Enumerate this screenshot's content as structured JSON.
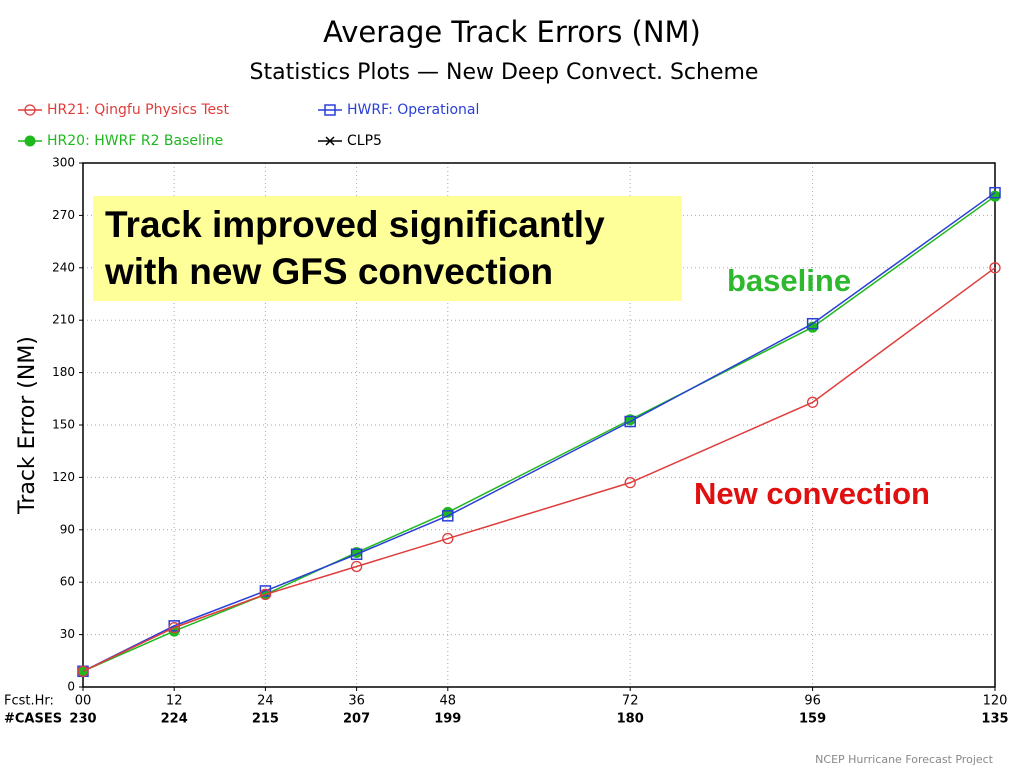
{
  "chart_data": {
    "type": "line",
    "title": "Average Track Errors (NM)",
    "subtitle": "Statistics Plots — New Deep Convect. Scheme",
    "y_label": "Track Error (NM)",
    "x_axis_label": "Fcst.Hr:",
    "cases_label": "#CASES",
    "x": [
      0,
      12,
      24,
      36,
      48,
      72,
      96,
      120
    ],
    "cases": [
      "230",
      "224",
      "215",
      "207",
      "199",
      "180",
      "159",
      "135"
    ],
    "xlim": [
      0,
      120
    ],
    "xticks": [
      {
        "value": 0,
        "label": "00"
      },
      12,
      24,
      36,
      48,
      72,
      96,
      120
    ],
    "ylim": [
      0,
      300
    ],
    "yticks": [
      0,
      30,
      60,
      90,
      120,
      150,
      180,
      210,
      240,
      270,
      300
    ],
    "grid": true,
    "series": [
      {
        "name": "HR21: Qingfu Physics Test",
        "color": "#e03c3c",
        "marker": "open-circle",
        "values": [
          9,
          34,
          53,
          69,
          85,
          117,
          163,
          240
        ]
      },
      {
        "name": "HWRF: Operational",
        "color": "#2a3fd6",
        "marker": "open-square",
        "values": [
          9,
          35,
          55,
          76,
          98,
          152,
          208,
          283
        ]
      },
      {
        "name": "HR20: HWRF R2 Baseline",
        "color": "#1fb81f",
        "marker": "filled-circle",
        "values": [
          9,
          32,
          53,
          77,
          100,
          153,
          206,
          281
        ]
      },
      {
        "name": "CLP5",
        "color": "#000000",
        "marker": "x",
        "values": [
          null,
          null,
          null,
          null,
          null,
          null,
          null,
          null
        ]
      }
    ],
    "annotations": [
      {
        "lines": [
          "Track improved significantly",
          "with new GFS convection"
        ],
        "color": "#000000",
        "background": "#ffff99"
      },
      {
        "lines": [
          "baseline"
        ],
        "color": "#2db82d"
      },
      {
        "lines": [
          "New convection"
        ],
        "color": "#e01010"
      }
    ],
    "footer": "NCEP Hurricane Forecast Project"
  }
}
